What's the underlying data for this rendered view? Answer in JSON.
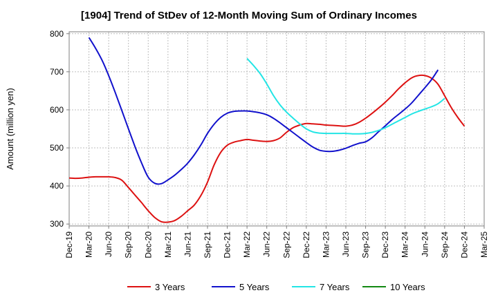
{
  "chart_data": {
    "type": "line",
    "title": "[1904]  Trend of StDev of 12-Month Moving Sum of Ordinary Incomes",
    "xlabel": "",
    "ylabel": "Amount (million yen)",
    "ylim": [
      295,
      805
    ],
    "yticks": [
      300,
      400,
      500,
      600,
      700,
      800
    ],
    "xticks": [
      "Dec-19",
      "Mar-20",
      "Jun-20",
      "Sep-20",
      "Dec-20",
      "Mar-21",
      "Jun-21",
      "Sep-21",
      "Dec-21",
      "Mar-22",
      "Jun-22",
      "Sep-22",
      "Dec-22",
      "Mar-23",
      "Jun-23",
      "Sep-23",
      "Dec-23",
      "Mar-24",
      "Jun-24",
      "Sep-24",
      "Dec-24",
      "Mar-25"
    ],
    "grid": true,
    "legend_position": "bottom",
    "series": [
      {
        "name": "3 Years",
        "color": "#dd1111",
        "points": [
          [
            0,
            421
          ],
          [
            1,
            420
          ],
          [
            2,
            421
          ],
          [
            3,
            423
          ],
          [
            4,
            424
          ],
          [
            5,
            424
          ],
          [
            6,
            424
          ],
          [
            7,
            422
          ],
          [
            8,
            415
          ],
          [
            9,
            396
          ],
          [
            10,
            376
          ],
          [
            11,
            356
          ],
          [
            12,
            335
          ],
          [
            13,
            317
          ],
          [
            14,
            306
          ],
          [
            15,
            305
          ],
          [
            16,
            309
          ],
          [
            17,
            320
          ],
          [
            18,
            335
          ],
          [
            19,
            350
          ],
          [
            20,
            375
          ],
          [
            21,
            410
          ],
          [
            22,
            455
          ],
          [
            23,
            488
          ],
          [
            24,
            507
          ],
          [
            25,
            515
          ],
          [
            26,
            519
          ],
          [
            27,
            522
          ],
          [
            28,
            520
          ],
          [
            29,
            518
          ],
          [
            30,
            517
          ],
          [
            31,
            519
          ],
          [
            32,
            526
          ],
          [
            33,
            541
          ],
          [
            34,
            553
          ],
          [
            35,
            560
          ],
          [
            36,
            564
          ],
          [
            37,
            563
          ],
          [
            38,
            562
          ],
          [
            39,
            560
          ],
          [
            40,
            559
          ],
          [
            41,
            558
          ],
          [
            42,
            557
          ],
          [
            43,
            560
          ],
          [
            44,
            567
          ],
          [
            45,
            578
          ],
          [
            46,
            591
          ],
          [
            47,
            605
          ],
          [
            48,
            620
          ],
          [
            49,
            637
          ],
          [
            50,
            655
          ],
          [
            51,
            671
          ],
          [
            52,
            684
          ],
          [
            53,
            690
          ],
          [
            54,
            690
          ],
          [
            55,
            683
          ],
          [
            56,
            667
          ],
          [
            57,
            637
          ],
          [
            58,
            606
          ],
          [
            59,
            580
          ],
          [
            60,
            557
          ]
        ]
      },
      {
        "name": "5 Years",
        "color": "#1111cc",
        "points": [
          [
            3,
            790
          ],
          [
            4,
            762
          ],
          [
            5,
            730
          ],
          [
            6,
            690
          ],
          [
            7,
            645
          ],
          [
            8,
            598
          ],
          [
            9,
            550
          ],
          [
            10,
            503
          ],
          [
            11,
            460
          ],
          [
            12,
            423
          ],
          [
            13,
            407
          ],
          [
            14,
            406
          ],
          [
            15,
            416
          ],
          [
            16,
            428
          ],
          [
            17,
            443
          ],
          [
            18,
            460
          ],
          [
            19,
            482
          ],
          [
            20,
            508
          ],
          [
            21,
            538
          ],
          [
            22,
            562
          ],
          [
            23,
            580
          ],
          [
            24,
            591
          ],
          [
            25,
            596
          ],
          [
            26,
            597
          ],
          [
            27,
            597
          ],
          [
            28,
            595
          ],
          [
            29,
            592
          ],
          [
            30,
            587
          ],
          [
            31,
            578
          ],
          [
            32,
            566
          ],
          [
            33,
            553
          ],
          [
            34,
            540
          ],
          [
            35,
            527
          ],
          [
            36,
            514
          ],
          [
            37,
            502
          ],
          [
            38,
            494
          ],
          [
            39,
            491
          ],
          [
            40,
            491
          ],
          [
            41,
            494
          ],
          [
            42,
            499
          ],
          [
            43,
            506
          ],
          [
            44,
            512
          ],
          [
            45,
            516
          ],
          [
            46,
            527
          ],
          [
            47,
            543
          ],
          [
            48,
            558
          ],
          [
            49,
            574
          ],
          [
            50,
            588
          ],
          [
            51,
            602
          ],
          [
            52,
            618
          ],
          [
            53,
            638
          ],
          [
            54,
            658
          ],
          [
            55,
            679
          ],
          [
            56,
            705
          ]
        ]
      },
      {
        "name": "7 Years",
        "color": "#22e5e5",
        "points": [
          [
            27,
            735
          ],
          [
            28,
            716
          ],
          [
            29,
            695
          ],
          [
            30,
            668
          ],
          [
            31,
            638
          ],
          [
            32,
            613
          ],
          [
            33,
            594
          ],
          [
            34,
            578
          ],
          [
            35,
            563
          ],
          [
            36,
            550
          ],
          [
            37,
            542
          ],
          [
            38,
            539
          ],
          [
            39,
            538
          ],
          [
            40,
            538
          ],
          [
            41,
            538
          ],
          [
            42,
            538
          ],
          [
            43,
            537
          ],
          [
            44,
            537
          ],
          [
            45,
            538
          ],
          [
            46,
            541
          ],
          [
            47,
            546
          ],
          [
            48,
            553
          ],
          [
            49,
            562
          ],
          [
            50,
            571
          ],
          [
            51,
            580
          ],
          [
            52,
            589
          ],
          [
            53,
            596
          ],
          [
            54,
            602
          ],
          [
            55,
            608
          ],
          [
            56,
            616
          ],
          [
            57,
            630
          ]
        ]
      },
      {
        "name": "10 Years",
        "color": "#118811",
        "points": []
      }
    ]
  }
}
